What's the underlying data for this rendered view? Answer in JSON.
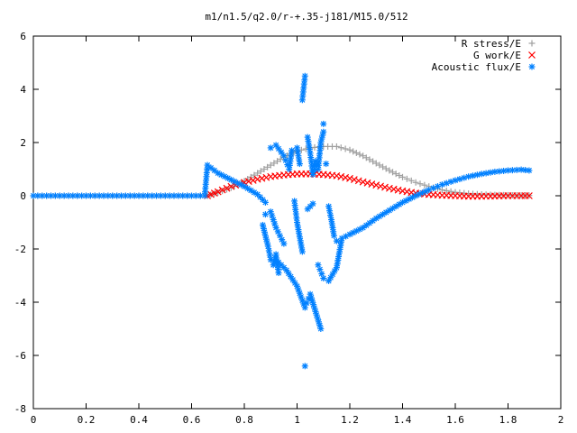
{
  "chart_data": {
    "type": "scatter",
    "title": "m1/n1.5/q2.0/r-+.35-j181/M15.0/512",
    "xlabel": "",
    "ylabel": "",
    "xlim": [
      0,
      2
    ],
    "ylim": [
      -8,
      6
    ],
    "x_ticks": [
      "0",
      "0.2",
      "0.4",
      "0.6",
      "0.8",
      "1",
      "1.2",
      "1.4",
      "1.6",
      "1.8",
      "2"
    ],
    "y_ticks": [
      "-8",
      "-6",
      "-4",
      "-2",
      "0",
      "2",
      "4",
      "6"
    ],
    "grid": false,
    "legend_position": "top-right",
    "series": [
      {
        "name": "R stress/E",
        "marker": "plus",
        "color": "#a0a0a0",
        "x": [
          0.0,
          0.05,
          0.1,
          0.15,
          0.2,
          0.25,
          0.3,
          0.35,
          0.4,
          0.45,
          0.5,
          0.55,
          0.6,
          0.65,
          0.66,
          0.7,
          0.75,
          0.8,
          0.85,
          0.9,
          0.95,
          1.0,
          1.05,
          1.1,
          1.15,
          1.2,
          1.25,
          1.3,
          1.35,
          1.4,
          1.45,
          1.5,
          1.55,
          1.6,
          1.65,
          1.7,
          1.75,
          1.8,
          1.85,
          1.88
        ],
        "y": [
          0,
          0,
          0,
          0,
          0,
          0,
          0,
          0,
          0,
          0,
          0,
          0,
          0,
          0,
          0.0,
          0.12,
          0.3,
          0.55,
          0.85,
          1.15,
          1.45,
          1.68,
          1.8,
          1.85,
          1.85,
          1.72,
          1.5,
          1.22,
          0.95,
          0.7,
          0.5,
          0.35,
          0.22,
          0.13,
          0.08,
          0.05,
          0.03,
          0.02,
          0.01,
          0.01
        ]
      },
      {
        "name": "G work/E",
        "marker": "cross",
        "color": "#ff0000",
        "x": [
          0.66,
          0.7,
          0.75,
          0.8,
          0.85,
          0.9,
          0.95,
          1.0,
          1.05,
          1.1,
          1.15,
          1.2,
          1.25,
          1.3,
          1.35,
          1.4,
          1.45,
          1.5,
          1.55,
          1.6,
          1.65,
          1.7,
          1.75,
          1.8,
          1.85,
          1.88
        ],
        "y": [
          0.0,
          0.15,
          0.35,
          0.5,
          0.62,
          0.72,
          0.78,
          0.82,
          0.82,
          0.8,
          0.75,
          0.65,
          0.52,
          0.4,
          0.28,
          0.18,
          0.1,
          0.05,
          0.02,
          0.0,
          -0.02,
          -0.02,
          -0.01,
          0.0,
          0.0,
          0.0
        ]
      },
      {
        "name": "Acoustic flux/E",
        "marker": "star",
        "color": "#0080ff",
        "x": [
          0.0,
          0.05,
          0.1,
          0.15,
          0.2,
          0.25,
          0.3,
          0.35,
          0.4,
          0.45,
          0.5,
          0.55,
          0.6,
          0.65,
          0.66,
          0.7,
          0.75,
          0.8,
          0.85,
          0.88,
          0.88,
          0.87,
          0.89,
          0.9,
          0.91,
          0.92,
          0.93,
          0.9,
          0.92,
          0.95,
          0.97,
          0.98,
          1.0,
          1.01,
          1.02,
          1.03,
          1.03,
          1.04,
          1.05,
          1.06,
          1.07,
          1.08,
          1.09,
          1.1,
          1.1,
          1.11,
          1.12,
          1.13,
          1.14,
          1.15,
          0.9,
          0.92,
          0.95,
          0.99,
          1.0,
          1.02,
          1.04,
          1.06,
          1.08,
          1.1,
          0.93,
          0.96,
          1.0,
          1.03,
          1.05,
          1.09,
          1.12,
          1.15,
          1.17,
          1.2,
          1.25,
          1.3,
          1.35,
          1.4,
          1.45,
          1.5,
          1.55,
          1.6,
          1.65,
          1.7,
          1.75,
          1.8,
          1.85,
          1.88
        ],
        "y": [
          0,
          0,
          0,
          0,
          0,
          0,
          0,
          0,
          0,
          0,
          0,
          0,
          0,
          0,
          1.15,
          0.85,
          0.6,
          0.35,
          0.05,
          -0.25,
          -0.7,
          -1.1,
          -1.9,
          -2.4,
          -2.6,
          -2.2,
          -2.9,
          1.8,
          1.9,
          1.5,
          1.0,
          1.7,
          1.8,
          1.2,
          3.6,
          4.5,
          -6.4,
          2.2,
          1.6,
          0.8,
          1.3,
          1.0,
          2.0,
          2.4,
          2.7,
          1.2,
          -0.4,
          -0.9,
          -1.5,
          -1.7,
          -0.6,
          -1.2,
          -1.8,
          -0.2,
          -1.0,
          -2.1,
          -0.5,
          -0.3,
          -2.6,
          -3.1,
          -2.5,
          -2.8,
          -3.4,
          -4.2,
          -3.7,
          -5.0,
          -3.2,
          -2.7,
          -1.6,
          -1.45,
          -1.2,
          -0.85,
          -0.55,
          -0.25,
          0.0,
          0.22,
          0.42,
          0.58,
          0.72,
          0.82,
          0.9,
          0.95,
          0.98,
          0.95
        ]
      }
    ]
  }
}
